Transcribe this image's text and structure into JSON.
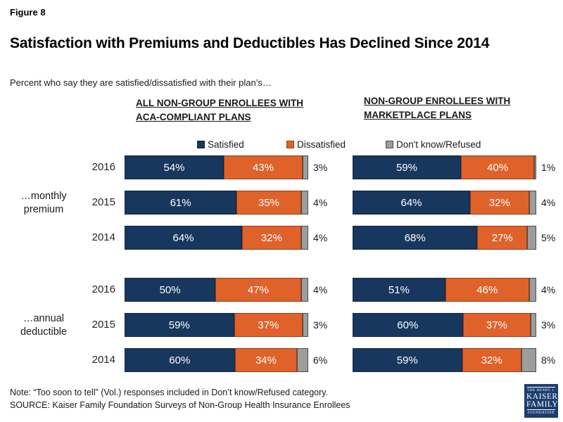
{
  "figure_label": "Figure 8",
  "title": "Satisfaction with Premiums and Deductibles Has Declined Since 2014",
  "subtitle": "Percent who say they are satisfied/dissatisfied with their plan’s…",
  "panels": [
    {
      "header_line1": "ALL NON-GROUP ENROLLEES WITH",
      "header_line2": "ACA-COMPLIANT PLANS"
    },
    {
      "header_line1": "NON-GROUP ENROLLEES WITH",
      "header_line2": "MARKETPLACE PLANS"
    }
  ],
  "legend": [
    {
      "label": "Satisfied",
      "fill": "#17375e",
      "border": "#0f2441"
    },
    {
      "label": "Dissatisfied",
      "fill": "#e0622b",
      "border": "#9a3d12"
    },
    {
      "label": "Don't know/Refused",
      "fill": "#9d9d9d",
      "border": "#4d4d4d"
    }
  ],
  "row_groups": [
    {
      "line1": "…monthly",
      "line2": "premium"
    },
    {
      "line1": "…annual",
      "line2": "deductible"
    }
  ],
  "chart_data": [
    {
      "type": "bar",
      "orientation": "horizontal",
      "stacked": true,
      "title": "ALL NON-GROUP ENROLLEES WITH ACA-COMPLIANT PLANS",
      "value_format": "percent",
      "xlim": [
        0,
        100
      ],
      "grid": false,
      "legend_position": "top",
      "groups": [
        {
          "label": "…monthly premium",
          "categories": [
            "2016",
            "2015",
            "2014"
          ],
          "series": [
            {
              "name": "Satisfied",
              "values": [
                54,
                61,
                64
              ]
            },
            {
              "name": "Dissatisfied",
              "values": [
                43,
                35,
                32
              ]
            },
            {
              "name": "Don't know/Refused",
              "values": [
                3,
                4,
                4
              ]
            }
          ]
        },
        {
          "label": "…annual deductible",
          "categories": [
            "2016",
            "2015",
            "2014"
          ],
          "series": [
            {
              "name": "Satisfied",
              "values": [
                50,
                59,
                60
              ]
            },
            {
              "name": "Dissatisfied",
              "values": [
                47,
                37,
                34
              ]
            },
            {
              "name": "Don't know/Refused",
              "values": [
                4,
                3,
                6
              ]
            }
          ]
        }
      ]
    },
    {
      "type": "bar",
      "orientation": "horizontal",
      "stacked": true,
      "title": "NON-GROUP ENROLLEES WITH MARKETPLACE PLANS",
      "value_format": "percent",
      "xlim": [
        0,
        100
      ],
      "grid": false,
      "legend_position": "top",
      "groups": [
        {
          "label": "…monthly premium",
          "categories": [
            "2016",
            "2015",
            "2014"
          ],
          "series": [
            {
              "name": "Satisfied",
              "values": [
                59,
                64,
                68
              ]
            },
            {
              "name": "Dissatisfied",
              "values": [
                40,
                32,
                27
              ]
            },
            {
              "name": "Don't know/Refused",
              "values": [
                1,
                4,
                5
              ]
            }
          ]
        },
        {
          "label": "…annual deductible",
          "categories": [
            "2016",
            "2015",
            "2014"
          ],
          "series": [
            {
              "name": "Satisfied",
              "values": [
                51,
                60,
                59
              ]
            },
            {
              "name": "Dissatisfied",
              "values": [
                46,
                37,
                32
              ]
            },
            {
              "name": "Don't know/Refused",
              "values": [
                4,
                3,
                8
              ]
            }
          ]
        }
      ]
    }
  ],
  "note": "Note: “Too soon to tell” (Vol.) responses included in Don’t know/Refused category.",
  "source": "SOURCE: Kaiser Family Foundation Surveys of Non-Group Health Insurance Enrollees",
  "logo": {
    "line1": "THE HENRY J.",
    "line2": "KAISER",
    "line3": "FAMILY",
    "line4": "FOUNDATION"
  }
}
